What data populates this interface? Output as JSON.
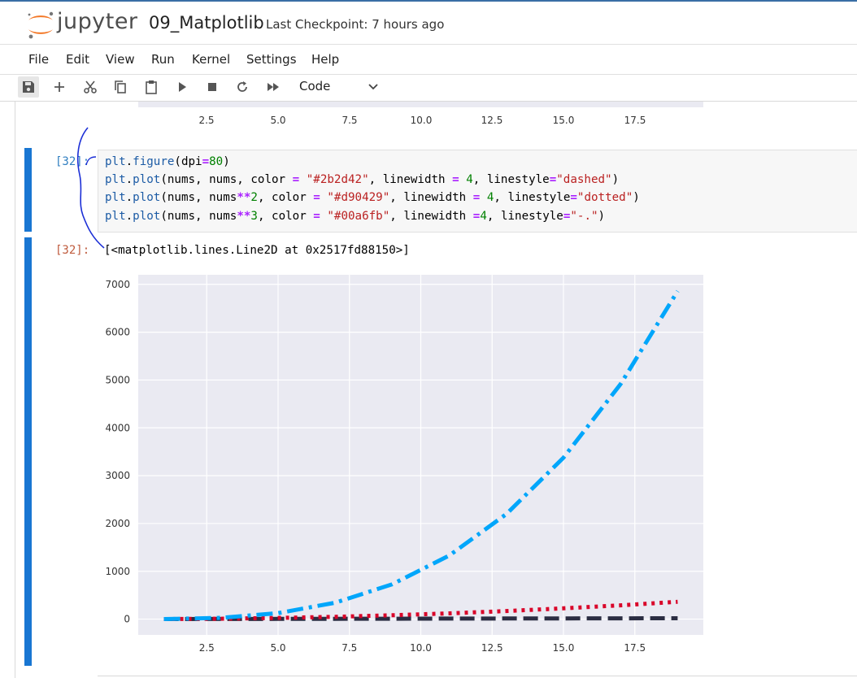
{
  "app": {
    "brand": "jupyter",
    "notebook_name": "09_Matplotlib",
    "checkpoint": "Last Checkpoint: 7 hours ago"
  },
  "menu": [
    "File",
    "Edit",
    "View",
    "Run",
    "Kernel",
    "Settings",
    "Help"
  ],
  "toolbar": {
    "icons": [
      "save-icon",
      "plus-icon",
      "scissors-icon",
      "copy-icon",
      "paste-icon",
      "run-icon",
      "stop-icon",
      "restart-icon",
      "fast-forward-icon"
    ],
    "cell_type": "Code"
  },
  "prev_chart": {
    "tick_labels": [
      "2.5",
      "5.0",
      "7.5",
      "10.0",
      "12.5",
      "15.0",
      "17.5"
    ]
  },
  "cell": {
    "in_prompt": "[32]:",
    "out_prompt": "[32]:",
    "output_text": "[<matplotlib.lines.Line2D at 0x2517fd88150>]",
    "code": [
      [
        [
          "fn",
          "plt"
        ],
        [
          "kw",
          "."
        ],
        [
          "fn",
          "figure"
        ],
        [
          "kw",
          "(dpi"
        ],
        [
          "op",
          "="
        ],
        [
          "num",
          "80"
        ],
        [
          "kw",
          ")"
        ]
      ],
      [
        [
          "fn",
          "plt"
        ],
        [
          "kw",
          "."
        ],
        [
          "fn",
          "plot"
        ],
        [
          "kw",
          "(nums, nums, color "
        ],
        [
          "op",
          "="
        ],
        [
          "kw",
          " "
        ],
        [
          "str",
          "\"#2b2d42\""
        ],
        [
          "kw",
          ", linewidth "
        ],
        [
          "op",
          "="
        ],
        [
          "kw",
          " "
        ],
        [
          "num",
          "4"
        ],
        [
          "kw",
          ", linestyle"
        ],
        [
          "op",
          "="
        ],
        [
          "str",
          "\"dashed\""
        ],
        [
          "kw",
          ")"
        ]
      ],
      [
        [
          "fn",
          "plt"
        ],
        [
          "kw",
          "."
        ],
        [
          "fn",
          "plot"
        ],
        [
          "kw",
          "(nums, nums"
        ],
        [
          "op",
          "**"
        ],
        [
          "num",
          "2"
        ],
        [
          "kw",
          ", color "
        ],
        [
          "op",
          "="
        ],
        [
          "kw",
          " "
        ],
        [
          "str",
          "\"#d90429\""
        ],
        [
          "kw",
          ", linewidth "
        ],
        [
          "op",
          "="
        ],
        [
          "kw",
          " "
        ],
        [
          "num",
          "4"
        ],
        [
          "kw",
          ", linestyle"
        ],
        [
          "op",
          "="
        ],
        [
          "str",
          "\"dotted\""
        ],
        [
          "kw",
          ")"
        ]
      ],
      [
        [
          "fn",
          "plt"
        ],
        [
          "kw",
          "."
        ],
        [
          "fn",
          "plot"
        ],
        [
          "kw",
          "(nums, nums"
        ],
        [
          "op",
          "**"
        ],
        [
          "num",
          "3"
        ],
        [
          "kw",
          ", color "
        ],
        [
          "op",
          "="
        ],
        [
          "kw",
          " "
        ],
        [
          "str",
          "\"#00a6fb\""
        ],
        [
          "kw",
          ", linewidth "
        ],
        [
          "op",
          "="
        ],
        [
          "num",
          "4"
        ],
        [
          "kw",
          ", linestyle"
        ],
        [
          "op",
          "="
        ],
        [
          "str",
          "\"-.\""
        ],
        [
          "kw",
          ")"
        ]
      ]
    ]
  },
  "chart_data": {
    "type": "line",
    "xlim": [
      0.1,
      19.9
    ],
    "ylim": [
      -330,
      7200
    ],
    "x_ticks": [
      2.5,
      5.0,
      7.5,
      10.0,
      12.5,
      15.0,
      17.5
    ],
    "x_tick_labels": [
      "2.5",
      "5.0",
      "7.5",
      "10.0",
      "12.5",
      "15.0",
      "17.5"
    ],
    "y_ticks": [
      0,
      1000,
      2000,
      3000,
      4000,
      5000,
      6000,
      7000
    ],
    "y_tick_labels": [
      "0",
      "1000",
      "2000",
      "3000",
      "4000",
      "5000",
      "6000",
      "7000"
    ],
    "grid": true,
    "x": [
      1,
      3,
      5,
      7,
      9,
      11,
      13,
      15,
      17,
      19
    ],
    "series": [
      {
        "values": [
          1,
          3,
          5,
          7,
          9,
          11,
          13,
          15,
          17,
          19
        ],
        "color": "#2b2d42",
        "style": "dashed"
      },
      {
        "values": [
          1,
          9,
          25,
          49,
          81,
          121,
          169,
          225,
          289,
          361
        ],
        "color": "#d90429",
        "style": "dotted"
      },
      {
        "values": [
          1,
          27,
          125,
          343,
          729,
          1331,
          2197,
          3375,
          4913,
          6859
        ],
        "color": "#00a6fb",
        "style": "dashdot"
      }
    ]
  },
  "colors": {
    "accent": "#1976d2",
    "plot_bg": "#eaeaf2"
  }
}
